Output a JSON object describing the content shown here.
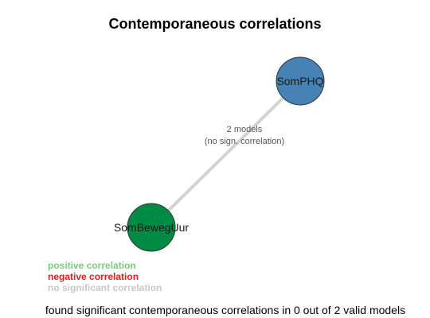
{
  "title": "Contemporaneous correlations",
  "graph": {
    "nodes": [
      {
        "id": "n1",
        "label": "SomPHQ",
        "color": "#4682B4"
      },
      {
        "id": "n2",
        "label": "SomBewegUur",
        "color": "#008B45"
      }
    ],
    "edge": {
      "from": "n1",
      "to": "n2",
      "color": "#D3D3D3",
      "label_line1": "2 models",
      "label_line2": "(no sign. correlation)"
    }
  },
  "legend": {
    "positive": {
      "label": "positive correlation",
      "color": "#7FC97F"
    },
    "negative": {
      "label": "negative correlation",
      "color": "#E41A1C"
    },
    "none": {
      "label": "no significant correlation",
      "color": "#C8C8C8"
    }
  },
  "footer": "found significant contemporaneous correlations in 0 out of 2 valid models"
}
